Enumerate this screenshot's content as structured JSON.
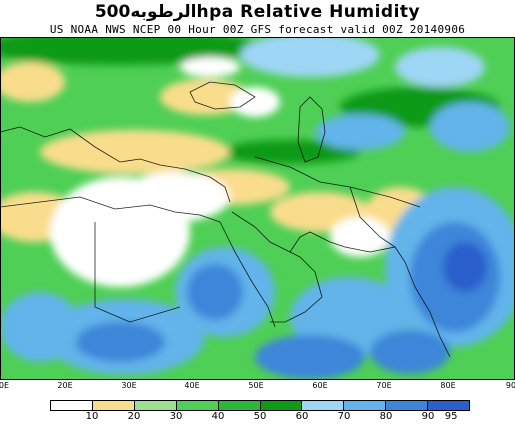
{
  "header": {
    "title": "الرطوبه500hpa Relative Humidity",
    "subtitle": "US NOAA NWS NCEP 00 Hour 00Z GFS forecast valid 00Z 20140906"
  },
  "map": {
    "x_ticks": [
      "0E",
      "20E",
      "30E",
      "40E",
      "50E",
      "60E",
      "70E",
      "80E",
      "90"
    ]
  },
  "legend": {
    "labels": [
      "10",
      "20",
      "30",
      "40",
      "50",
      "60",
      "70",
      "80",
      "90",
      "95"
    ],
    "colors": [
      "#ffffff",
      "#f9dd8c",
      "#9be08f",
      "#4fcf55",
      "#2eb73a",
      "#0f9a18",
      "#9ed6f5",
      "#62b4ea",
      "#3c86d9",
      "#2a5fcc"
    ]
  },
  "palette": {
    "dry": "#ffffff",
    "tan": "#f9dd8c",
    "lightgreen": "#9be08f",
    "green": "#4fcf55",
    "darkgreen": "#0f9a18",
    "lightblue": "#62b4ea",
    "blue": "#3c86d9",
    "darkblue": "#2a5fcc"
  }
}
